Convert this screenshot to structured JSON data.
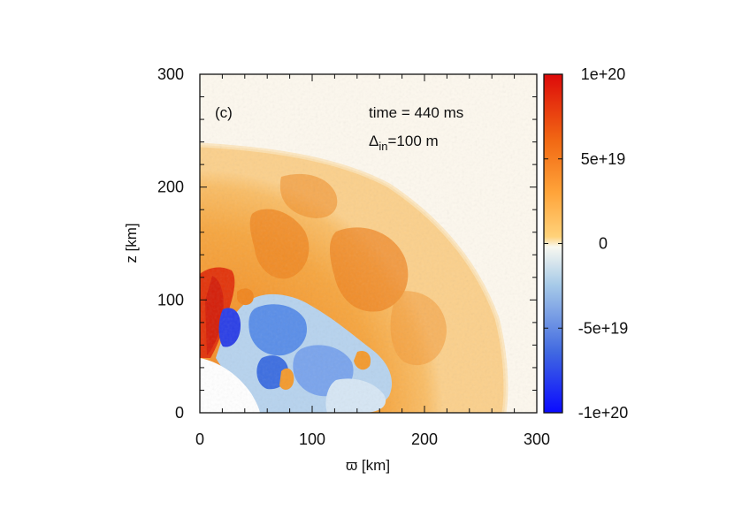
{
  "chart_data": {
    "type": "heatmap",
    "panel_label": "(c)",
    "annotations": {
      "time_label": "time = 440 ms",
      "delta_symbol": "Δ",
      "delta_subscript": "in",
      "delta_value": "=100 m"
    },
    "xlabel": "ϖ [km]",
    "ylabel": "z [km]",
    "xlim": [
      0,
      300
    ],
    "ylim": [
      0,
      300
    ],
    "x_ticks": [
      0,
      100,
      200,
      300
    ],
    "x_tick_labels": [
      "0",
      "100",
      "200",
      "300"
    ],
    "y_ticks": [
      0,
      100,
      200,
      300
    ],
    "y_tick_labels": [
      "0",
      "100",
      "200",
      "300"
    ],
    "colorbar": {
      "min": -1e+20,
      "max": 1e+20,
      "ticks": [
        1e+20,
        5e+19,
        0,
        -5e+19,
        -1e+20
      ],
      "tick_labels": [
        "1e+20",
        "5e+19",
        "0",
        "-5e+19",
        "-1e+20"
      ],
      "colors": [
        "#1a1aff",
        "#4f86f2",
        "#bfe0f2",
        "#fffff0",
        "#ffb454",
        "#f07a1e",
        "#dd1a08"
      ]
    },
    "field_regions": {
      "outer_shock_radius_km": 270,
      "polar_shock_height_km": 237,
      "inner_boundary_radius_km": 50,
      "exterior_value": 1e+17,
      "post_shock_value": 3.5e+19,
      "plume_value": 5e+19,
      "negative_region_value": -4e+19,
      "polar_jet_value": 9e+19
    }
  }
}
